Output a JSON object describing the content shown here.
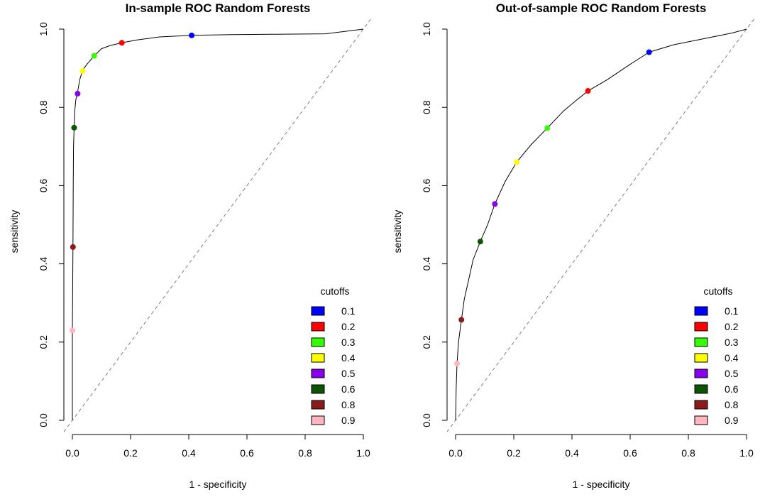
{
  "chart_data": [
    {
      "type": "line",
      "title": "In-sample ROC Random Forests",
      "xlabel": "1 - specificity",
      "ylabel": "sensitivity",
      "xlim": [
        0,
        1
      ],
      "ylim": [
        0,
        1
      ],
      "x_ticks": [
        "0.0",
        "0.2",
        "0.4",
        "0.6",
        "0.8",
        "1.0"
      ],
      "y_ticks": [
        "0.0",
        "0.2",
        "0.4",
        "0.6",
        "0.8",
        "1.0"
      ],
      "diagonal": "dashed gray reference line",
      "curve": {
        "x": [
          0,
          0,
          0.002,
          0.003,
          0.004,
          0.006,
          0.008,
          0.012,
          0.018,
          0.025,
          0.035,
          0.05,
          0.075,
          0.1,
          0.13,
          0.17,
          0.22,
          0.3,
          0.41,
          0.55,
          0.7,
          0.87,
          1.0
        ],
        "y": [
          0,
          0.23,
          0.44,
          0.6,
          0.7,
          0.75,
          0.79,
          0.82,
          0.84,
          0.87,
          0.895,
          0.91,
          0.932,
          0.95,
          0.958,
          0.965,
          0.972,
          0.98,
          0.984,
          0.986,
          0.987,
          0.988,
          1.0
        ]
      },
      "points": [
        {
          "cutoff": "0.1",
          "x": 0.41,
          "y": 0.984,
          "color": "#0000ff"
        },
        {
          "cutoff": "0.2",
          "x": 0.17,
          "y": 0.965,
          "color": "#ff0000"
        },
        {
          "cutoff": "0.3",
          "x": 0.075,
          "y": 0.932,
          "color": "#33ff00"
        },
        {
          "cutoff": "0.4",
          "x": 0.035,
          "y": 0.893,
          "color": "#ffff00"
        },
        {
          "cutoff": "0.5",
          "x": 0.018,
          "y": 0.835,
          "color": "#8800ee"
        },
        {
          "cutoff": "0.6",
          "x": 0.006,
          "y": 0.748,
          "color": "#0b5500"
        },
        {
          "cutoff": "0.8",
          "x": 0.002,
          "y": 0.443,
          "color": "#8b1a1a"
        },
        {
          "cutoff": "0.9",
          "x": 0.0,
          "y": 0.23,
          "color": "#ffb6c1"
        }
      ],
      "legend": {
        "title": "cutoffs",
        "position": "bottom-right",
        "entries": [
          {
            "label": "0.1",
            "color": "#0000ff"
          },
          {
            "label": "0.2",
            "color": "#ff0000"
          },
          {
            "label": "0.3",
            "color": "#33ff00"
          },
          {
            "label": "0.4",
            "color": "#ffff00"
          },
          {
            "label": "0.5",
            "color": "#8800ee"
          },
          {
            "label": "0.6",
            "color": "#0b5500"
          },
          {
            "label": "0.8",
            "color": "#8b1a1a"
          },
          {
            "label": "0.9",
            "color": "#ffb6c1"
          }
        ]
      }
    },
    {
      "type": "line",
      "title": "Out-of-sample ROC Random Forests",
      "xlabel": "1 - specificity",
      "ylabel": "sensitivity",
      "xlim": [
        0,
        1
      ],
      "ylim": [
        0,
        1
      ],
      "x_ticks": [
        "0.0",
        "0.2",
        "0.4",
        "0.6",
        "0.8",
        "1.0"
      ],
      "y_ticks": [
        "0.0",
        "0.2",
        "0.4",
        "0.6",
        "0.8",
        "1.0"
      ],
      "diagonal": "dashed gray reference line",
      "curve": {
        "x": [
          0,
          0.002,
          0.005,
          0.01,
          0.02,
          0.03,
          0.045,
          0.06,
          0.085,
          0.11,
          0.135,
          0.17,
          0.21,
          0.26,
          0.315,
          0.37,
          0.41,
          0.455,
          0.52,
          0.6,
          0.665,
          0.75,
          0.85,
          0.95,
          1.0
        ],
        "y": [
          0,
          0.08,
          0.145,
          0.2,
          0.257,
          0.31,
          0.36,
          0.41,
          0.457,
          0.5,
          0.553,
          0.61,
          0.66,
          0.705,
          0.747,
          0.79,
          0.815,
          0.842,
          0.87,
          0.91,
          0.941,
          0.96,
          0.975,
          0.99,
          1.0
        ]
      },
      "points": [
        {
          "cutoff": "0.1",
          "x": 0.665,
          "y": 0.941,
          "color": "#0000ff"
        },
        {
          "cutoff": "0.2",
          "x": 0.455,
          "y": 0.842,
          "color": "#ff0000"
        },
        {
          "cutoff": "0.3",
          "x": 0.315,
          "y": 0.747,
          "color": "#33ff00"
        },
        {
          "cutoff": "0.4",
          "x": 0.21,
          "y": 0.66,
          "color": "#ffff00"
        },
        {
          "cutoff": "0.5",
          "x": 0.135,
          "y": 0.553,
          "color": "#8800ee"
        },
        {
          "cutoff": "0.6",
          "x": 0.085,
          "y": 0.457,
          "color": "#0b5500"
        },
        {
          "cutoff": "0.8",
          "x": 0.02,
          "y": 0.257,
          "color": "#8b1a1a"
        },
        {
          "cutoff": "0.9",
          "x": 0.005,
          "y": 0.145,
          "color": "#ffb6c1"
        }
      ],
      "legend": {
        "title": "cutoffs",
        "position": "bottom-right",
        "entries": [
          {
            "label": "0.1",
            "color": "#0000ff"
          },
          {
            "label": "0.2",
            "color": "#ff0000"
          },
          {
            "label": "0.3",
            "color": "#33ff00"
          },
          {
            "label": "0.4",
            "color": "#ffff00"
          },
          {
            "label": "0.5",
            "color": "#8800ee"
          },
          {
            "label": "0.6",
            "color": "#0b5500"
          },
          {
            "label": "0.8",
            "color": "#8b1a1a"
          },
          {
            "label": "0.9",
            "color": "#ffb6c1"
          }
        ]
      }
    }
  ]
}
